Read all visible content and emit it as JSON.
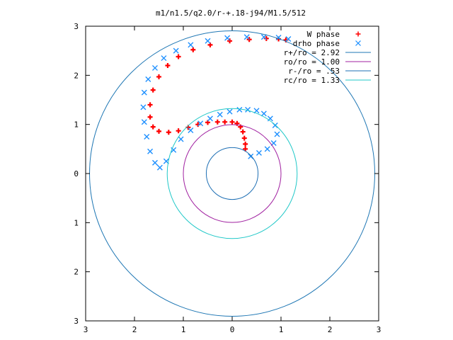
{
  "chart_data": {
    "type": "scatter",
    "title": "m1/n1.5/q2.0/r-+.18-j94/M1.5/512",
    "xlabel": "",
    "ylabel": "",
    "xlim": [
      -3,
      3
    ],
    "ylim": [
      -3,
      3
    ],
    "grid": false,
    "legend_position": "top-right",
    "x_ticks": [
      {
        "value": -3,
        "label": "3"
      },
      {
        "value": -2,
        "label": "2"
      },
      {
        "value": -1,
        "label": "1"
      },
      {
        "value": 0,
        "label": "0"
      },
      {
        "value": 1,
        "label": "1"
      },
      {
        "value": 2,
        "label": "2"
      },
      {
        "value": 3,
        "label": "3"
      }
    ],
    "y_ticks": [
      {
        "value": 3,
        "label": "3"
      },
      {
        "value": 2,
        "label": "2"
      },
      {
        "value": 1,
        "label": "1"
      },
      {
        "value": 0,
        "label": "0"
      },
      {
        "value": -1,
        "label": "1"
      },
      {
        "value": -2,
        "label": "2"
      },
      {
        "value": -3,
        "label": "3"
      }
    ],
    "series": [
      {
        "name": "W phase",
        "kind": "points",
        "marker": "plus",
        "color": "#ff0000",
        "x": [
          0.27,
          0.27,
          0.25,
          0.22,
          0.17,
          0.1,
          0.0,
          -0.15,
          -0.3,
          -0.5,
          -0.7,
          -0.9,
          -1.1,
          -1.3,
          -1.5,
          -1.62,
          -1.68,
          -1.68,
          -1.62,
          -1.5,
          -1.32,
          -1.1,
          -0.8,
          -0.45,
          -0.05,
          0.35,
          0.7,
          0.95,
          1.1
        ],
        "y": [
          0.5,
          0.6,
          0.72,
          0.85,
          0.95,
          1.02,
          1.05,
          1.05,
          1.05,
          1.04,
          1.0,
          0.94,
          0.87,
          0.84,
          0.86,
          0.95,
          1.15,
          1.4,
          1.7,
          1.97,
          2.2,
          2.38,
          2.52,
          2.62,
          2.7,
          2.73,
          2.75,
          2.74,
          2.72
        ]
      },
      {
        "name": "drho phase",
        "kind": "points",
        "marker": "x",
        "color": "#1e90ff",
        "x": [
          0.38,
          0.55,
          0.72,
          0.85,
          0.92,
          0.88,
          0.78,
          0.65,
          0.5,
          0.32,
          0.15,
          -0.05,
          -0.25,
          -0.45,
          -0.65,
          -0.85,
          -1.05,
          -1.2,
          -1.35,
          -1.48,
          -1.58,
          -1.68,
          -1.75,
          -1.8,
          -1.82,
          -1.8,
          -1.72,
          -1.58,
          -1.4,
          -1.15,
          -0.85,
          -0.5,
          -0.1,
          0.3,
          0.65,
          0.95,
          1.15
        ],
        "y": [
          0.35,
          0.42,
          0.5,
          0.62,
          0.8,
          0.98,
          1.12,
          1.22,
          1.28,
          1.3,
          1.3,
          1.26,
          1.2,
          1.12,
          1.02,
          0.88,
          0.7,
          0.48,
          0.25,
          0.12,
          0.22,
          0.45,
          0.75,
          1.05,
          1.35,
          1.65,
          1.92,
          2.15,
          2.35,
          2.5,
          2.62,
          2.7,
          2.76,
          2.78,
          2.78,
          2.77,
          2.74
        ]
      },
      {
        "name": "r+/ro = 2.92",
        "kind": "circle",
        "radius": 2.92,
        "color": "#1f77b4"
      },
      {
        "name": "ro/ro = 1.00",
        "kind": "circle",
        "radius": 1.0,
        "color": "#a020a0"
      },
      {
        "name": "r-/ro = .53",
        "kind": "circle",
        "radius": 0.53,
        "color": "#1e6fb4"
      },
      {
        "name": "rc/ro = 1.33",
        "kind": "circle",
        "radius": 1.33,
        "color": "#20c8c8"
      }
    ]
  }
}
